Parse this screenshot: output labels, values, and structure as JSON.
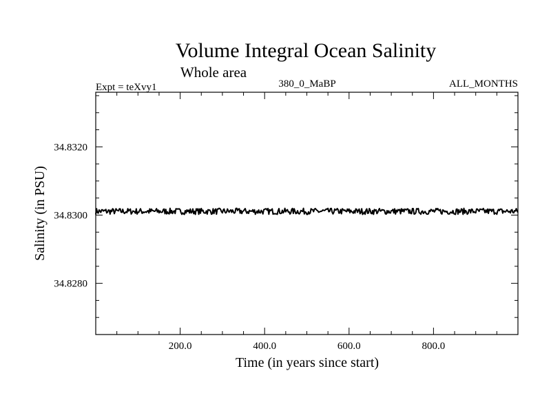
{
  "chart_data": {
    "type": "line",
    "title": "Volume Integral Ocean Salinity",
    "subtitle": "Whole area",
    "left_label": "Expt = teXvy1",
    "center_label": "380_0_MaBP",
    "right_label": "ALL_MONTHS",
    "xlabel": "Time (in years since start)",
    "ylabel": "Salinity (in PSU)",
    "xlim": [
      0,
      1000
    ],
    "ylim": [
      34.8265,
      34.8336
    ],
    "x_ticks": [
      200,
      400,
      600,
      800
    ],
    "x_tick_labels": [
      "200.0",
      "400.0",
      "600.0",
      "800.0"
    ],
    "y_ticks": [
      34.828,
      34.83,
      34.832
    ],
    "y_tick_labels": [
      "34.8280",
      "34.8300",
      "34.8320"
    ],
    "grid": false,
    "series": [
      {
        "name": "salinity",
        "color": "#000000",
        "mean": 34.83011,
        "noise_amplitude": 9e-05,
        "x_start": 0,
        "x_end": 1000,
        "x_step": 2
      }
    ]
  }
}
